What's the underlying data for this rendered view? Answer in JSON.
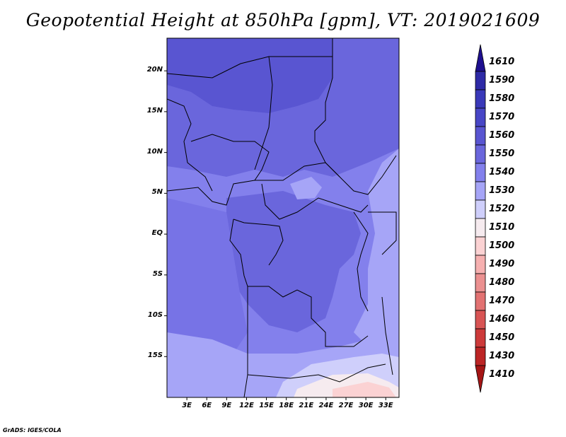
{
  "title": "Geopotential Height at 850hPa [gpm], VT: 2019021609",
  "credit": "GrADS: IGES/COLA",
  "map": {
    "lat_ticks": [
      "20N",
      "15N",
      "10N",
      "5N",
      "EQ",
      "5S",
      "10S",
      "15S"
    ],
    "lon_ticks": [
      "3E",
      "6E",
      "9E",
      "12E",
      "15E",
      "18E",
      "21E",
      "24E",
      "27E",
      "30E",
      "33E"
    ],
    "lat_range": [
      -20,
      24
    ],
    "lon_range": [
      0,
      35
    ]
  },
  "colorbar": {
    "levels": [
      "1610",
      "1590",
      "1580",
      "1570",
      "1560",
      "1550",
      "1540",
      "1530",
      "1520",
      "1510",
      "1500",
      "1490",
      "1480",
      "1470",
      "1460",
      "1450",
      "1430",
      "1410"
    ],
    "colors": [
      "#1e0f8f",
      "#2e2aa6",
      "#3a39b9",
      "#4846c6",
      "#5955d1",
      "#6a66dc",
      "#8380ec",
      "#a6a5f7",
      "#cfcffb",
      "#f6ebef",
      "#fbd2d3",
      "#f6b0b0",
      "#eb9090",
      "#e27272",
      "#d85454",
      "#cd3a3a",
      "#bc2525",
      "#a51515"
    ]
  }
}
